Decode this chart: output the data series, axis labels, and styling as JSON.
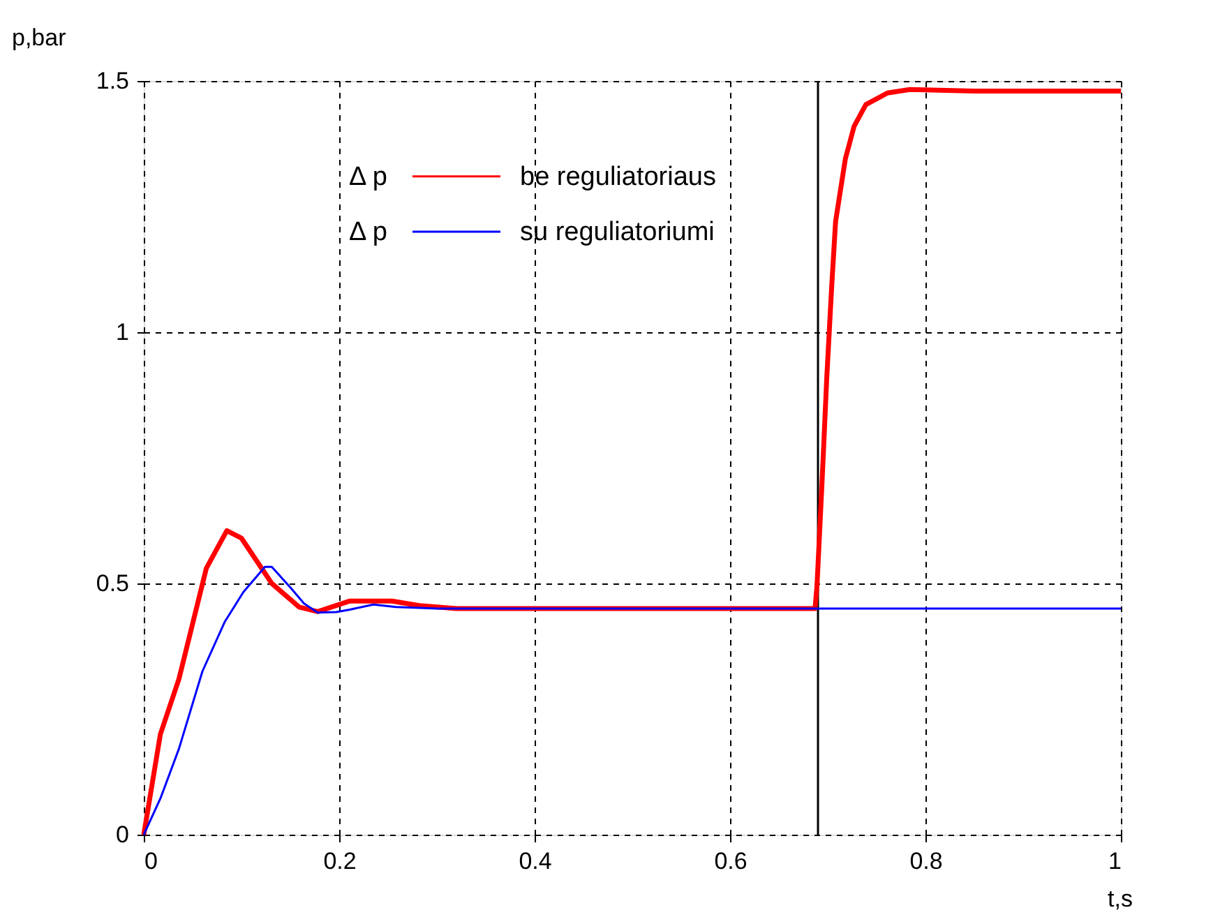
{
  "chart_data": {
    "type": "line",
    "xlabel": "t,s",
    "ylabel": "p,bar",
    "xlim": [
      0,
      1
    ],
    "ylim": [
      0,
      1.5
    ],
    "xticks": [
      0,
      0.2,
      0.4,
      0.6,
      0.8,
      1
    ],
    "yticks": [
      0,
      0.5,
      1,
      1.5
    ],
    "grid": true,
    "legend": "top",
    "annotations": [
      "Δ p",
      "Δ p"
    ],
    "ref_lines": [
      {
        "axis": "x",
        "value": 0.69,
        "color": "#000000",
        "line_style": "solid"
      }
    ],
    "series": [
      {
        "name": "be reguliatoriaus",
        "color": "#ff0000",
        "x": [
          0,
          0.017,
          0.036,
          0.05,
          0.064,
          0.085,
          0.1,
          0.131,
          0.159,
          0.178,
          0.211,
          0.254,
          0.282,
          0.32,
          0.5,
          0.687,
          0.689,
          0.694,
          0.699,
          0.704,
          0.708,
          0.718,
          0.727,
          0.739,
          0.761,
          0.784,
          0.85,
          1
        ],
        "values": [
          0,
          0.2,
          0.31,
          0.42,
          0.53,
          0.605,
          0.59,
          0.5,
          0.453,
          0.444,
          0.465,
          0.465,
          0.456,
          0.45,
          0.45,
          0.45,
          0.496,
          0.695,
          0.91,
          1.09,
          1.22,
          1.345,
          1.41,
          1.453,
          1.476,
          1.483,
          1.48,
          1.48
        ]
      },
      {
        "name": "su reguliatoriumi",
        "color": "#0000ff",
        "x": [
          0,
          0.017,
          0.036,
          0.06,
          0.083,
          0.102,
          0.124,
          0.131,
          0.15,
          0.164,
          0.178,
          0.197,
          0.211,
          0.235,
          0.258,
          0.3,
          1
        ],
        "values": [
          0,
          0.072,
          0.171,
          0.325,
          0.424,
          0.483,
          0.533,
          0.533,
          0.492,
          0.46,
          0.442,
          0.443,
          0.448,
          0.458,
          0.453,
          0.45,
          0.45
        ]
      }
    ]
  }
}
